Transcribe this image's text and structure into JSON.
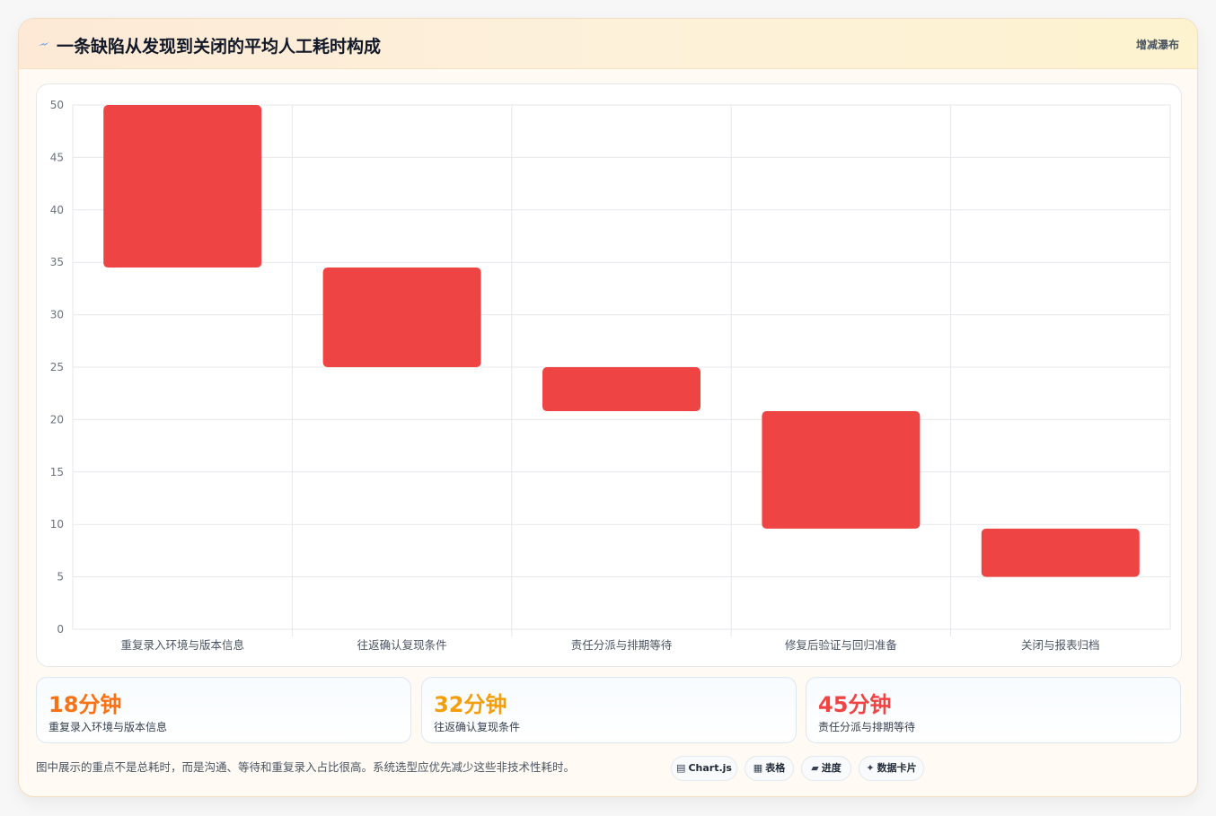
{
  "header": {
    "icon": "lightning-icon",
    "title": "一条缺陷从发现到关闭的平均人工耗时构成",
    "link_label": "增减瀑布"
  },
  "chart_data": {
    "type": "bar",
    "subtype": "waterfall-floating",
    "title": "",
    "xlabel": "",
    "ylabel": "",
    "ylim": [
      0,
      50
    ],
    "yticks": [
      0,
      5,
      10,
      15,
      20,
      25,
      30,
      35,
      40,
      45,
      50
    ],
    "categories": [
      "重复录入环境与版本信息",
      "往返确认复现条件",
      "责任分派与排期等待",
      "修复后验证与回归准备",
      "关闭与报表归档"
    ],
    "ranges": [
      [
        34.5,
        50
      ],
      [
        25,
        34.5
      ],
      [
        20.8,
        25
      ],
      [
        9.6,
        20.8
      ],
      [
        5,
        9.6
      ]
    ],
    "bar_color": "#ef4444",
    "grid": true,
    "legend": "none"
  },
  "stats": [
    {
      "value": "18分钟",
      "label": "重复录入环境与版本信息",
      "color": "#f97316"
    },
    {
      "value": "32分钟",
      "label": "往返确认复现条件",
      "color": "#f59e0b"
    },
    {
      "value": "45分钟",
      "label": "责任分派与排期等待",
      "color": "#ef4444"
    }
  ],
  "note": "图中展示的重点不是总耗时，而是沟通、等待和重复录入占比很高。系统选型应优先减少这些非技术性耗时。",
  "chips": [
    {
      "icon": "chart-icon",
      "label": "Chart.js"
    },
    {
      "icon": "table-icon",
      "label": "表格"
    },
    {
      "icon": "progress-icon",
      "label": "进度"
    },
    {
      "icon": "card-icon",
      "label": "数据卡片"
    }
  ]
}
